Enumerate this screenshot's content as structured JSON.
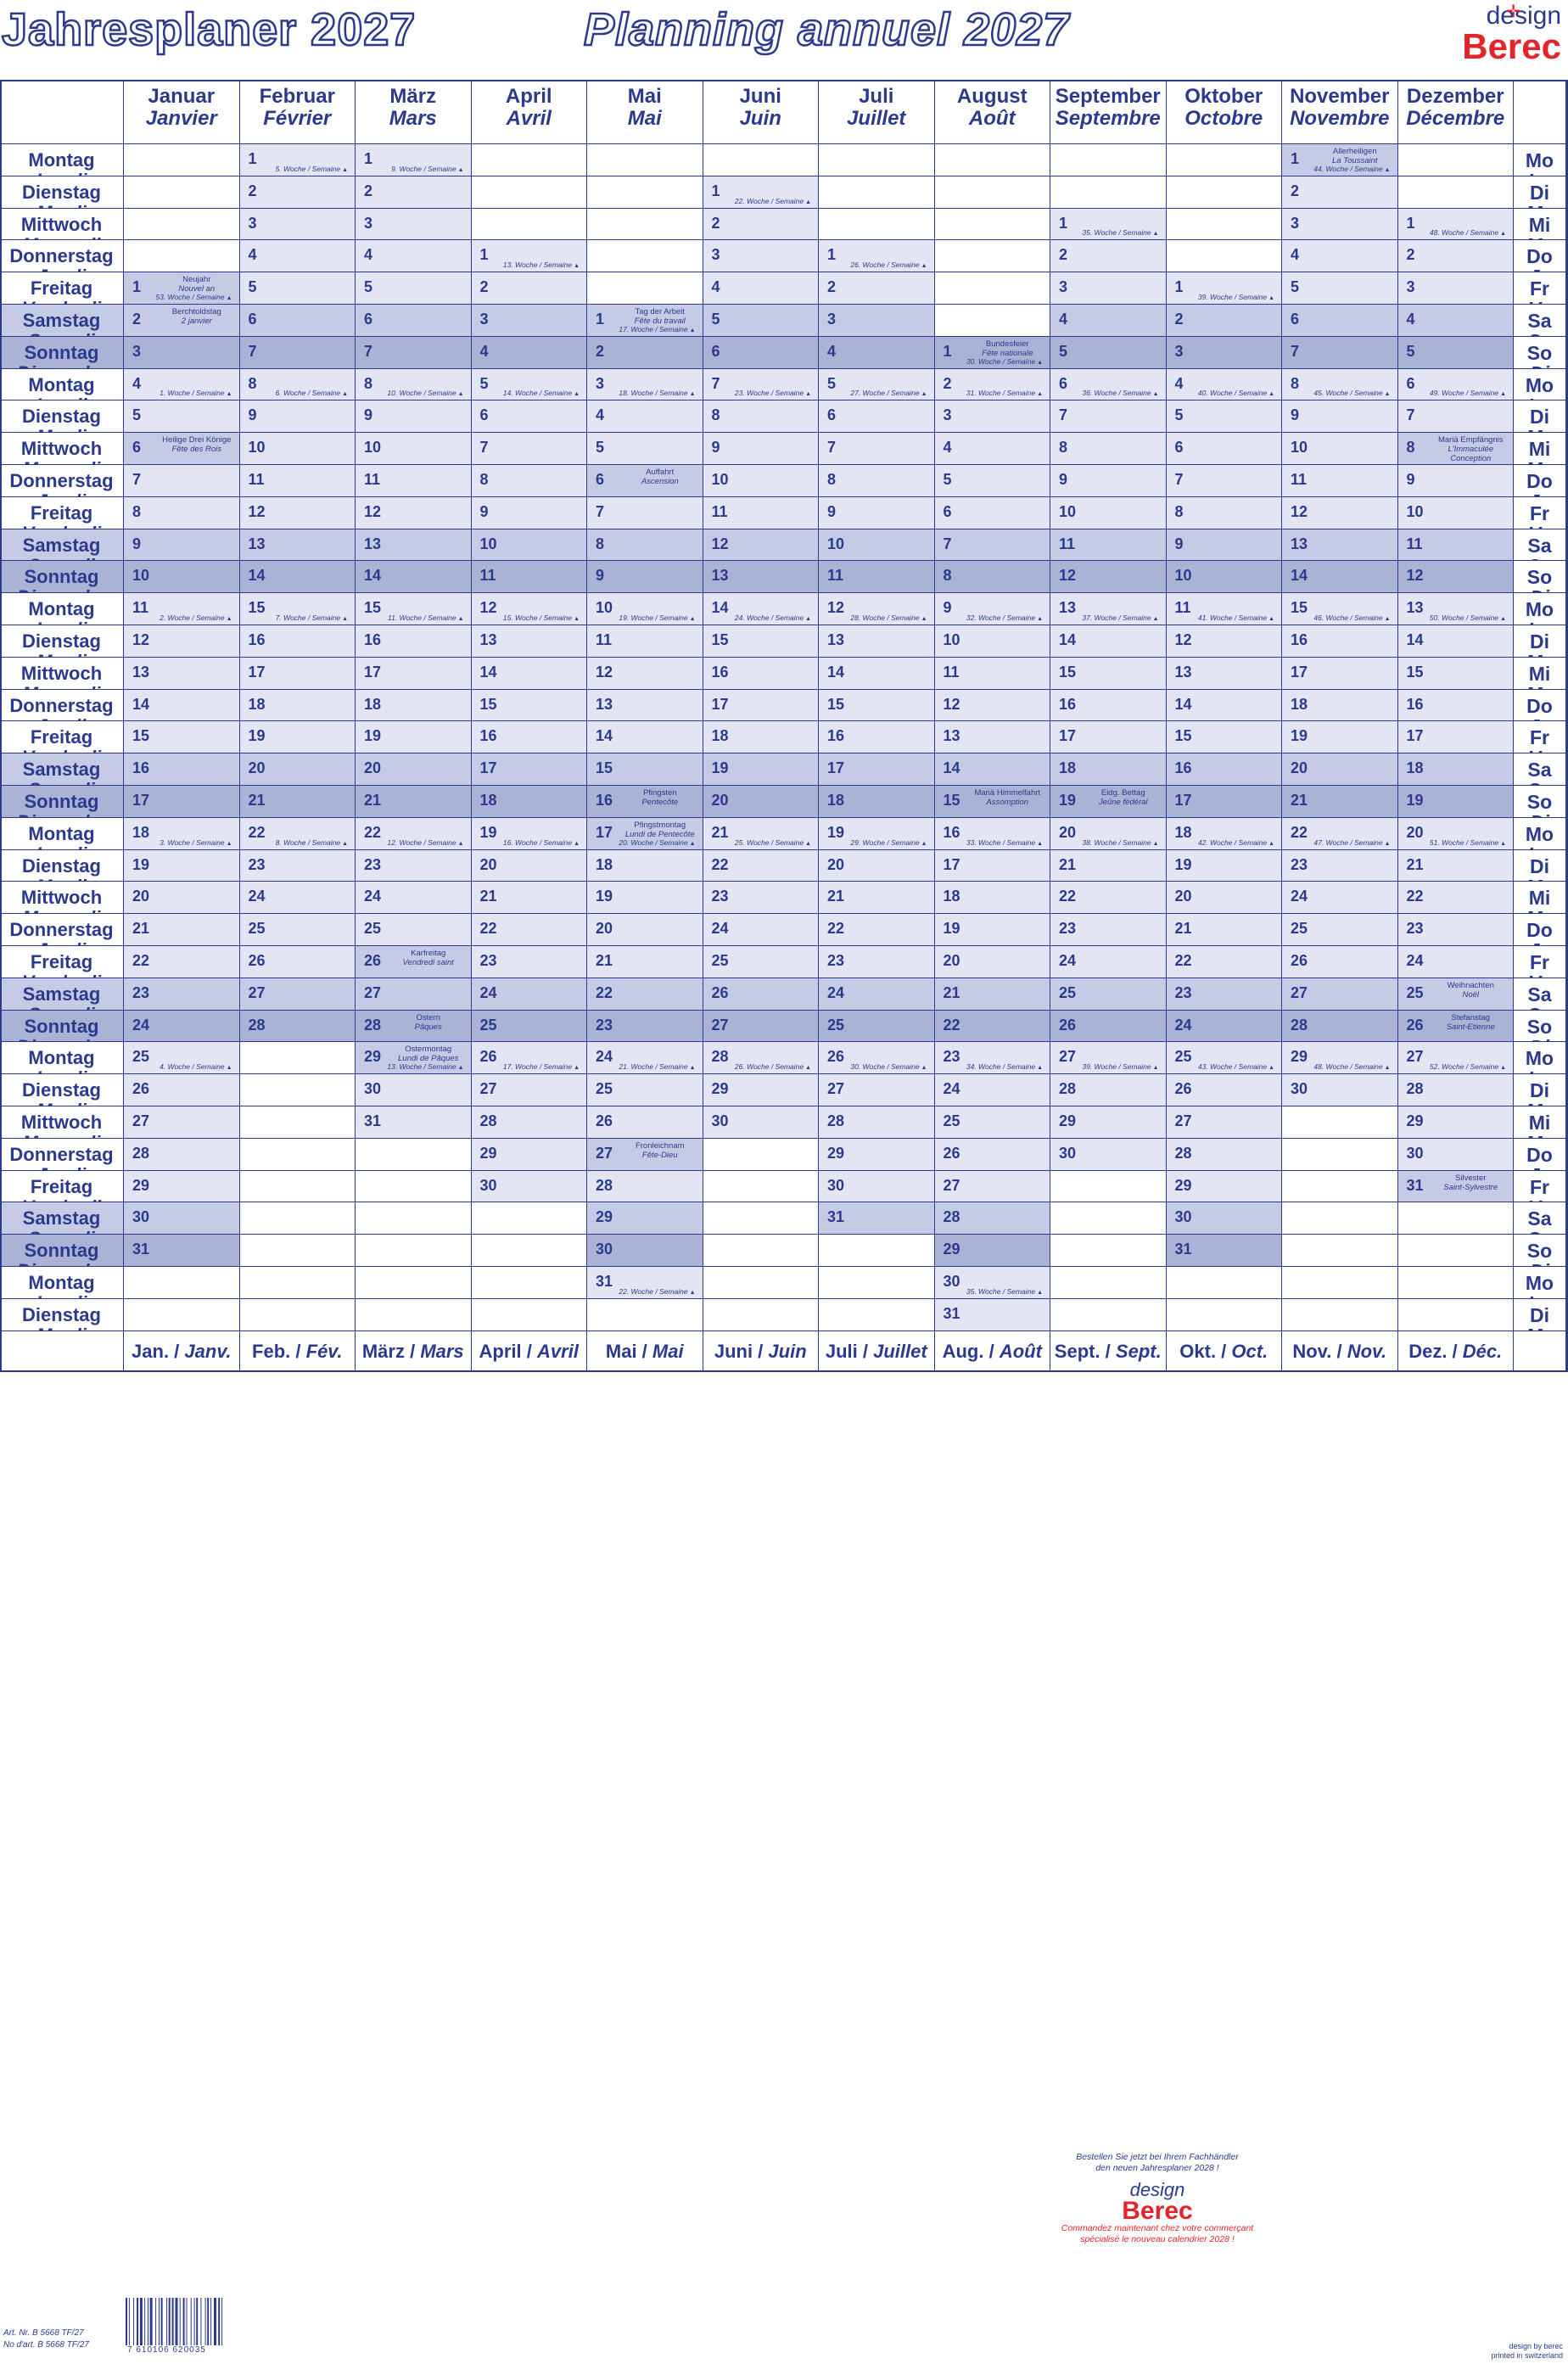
{
  "header": {
    "title_de": "Jahresplaner 2027",
    "title_fr": "Planning annuel 2027",
    "logo_design": "design",
    "logo_brand": "Berec"
  },
  "colors": {
    "ink": "#2b3a8c",
    "weekday": "#e3e6f2",
    "saturday": "#c5cbe4",
    "sunday": "#aab2d6",
    "brand_red": "#e3242b"
  },
  "months": [
    {
      "de": "Januar",
      "fr": "Janvier",
      "start": 4,
      "days": 31,
      "foot_de": "Jan. /",
      "foot_fr": "Janv."
    },
    {
      "de": "Februar",
      "fr": "Février",
      "start": 0,
      "days": 28,
      "foot_de": "Feb. /",
      "foot_fr": "Fév."
    },
    {
      "de": "März",
      "fr": "Mars",
      "start": 0,
      "days": 31,
      "foot_de": "März /",
      "foot_fr": "Mars"
    },
    {
      "de": "April",
      "fr": "Avril",
      "start": 3,
      "days": 30,
      "foot_de": "April /",
      "foot_fr": "Avril"
    },
    {
      "de": "Mai",
      "fr": "Mai",
      "start": 5,
      "days": 31,
      "foot_de": "Mai /",
      "foot_fr": "Mai"
    },
    {
      "de": "Juni",
      "fr": "Juin",
      "start": 1,
      "days": 30,
      "foot_de": "Juni /",
      "foot_fr": "Juin"
    },
    {
      "de": "Juli",
      "fr": "Juillet",
      "start": 3,
      "days": 31,
      "foot_de": "Juli /",
      "foot_fr": "Juillet"
    },
    {
      "de": "August",
      "fr": "Août",
      "start": 6,
      "days": 31,
      "foot_de": "Aug. /",
      "foot_fr": "Août"
    },
    {
      "de": "September",
      "fr": "Septembre",
      "start": 2,
      "days": 30,
      "foot_de": "Sept. /",
      "foot_fr": "Sept."
    },
    {
      "de": "Oktober",
      "fr": "Octobre",
      "start": 4,
      "days": 31,
      "foot_de": "Okt. /",
      "foot_fr": "Oct."
    },
    {
      "de": "November",
      "fr": "Novembre",
      "start": 0,
      "days": 30,
      "foot_de": "Nov. /",
      "foot_fr": "Nov."
    },
    {
      "de": "Dezember",
      "fr": "Décembre",
      "start": 2,
      "days": 31,
      "foot_de": "Dez. /",
      "foot_fr": "Déc."
    }
  ],
  "weekdays_left": [
    {
      "de": "Montag",
      "fr": "Lundi"
    },
    {
      "de": "Dienstag",
      "fr": "Mardi"
    },
    {
      "de": "Mittwoch",
      "fr": "Mercredi"
    },
    {
      "de": "Donnerstag",
      "fr": "Jeudi"
    },
    {
      "de": "Freitag",
      "fr": "Vendredi"
    },
    {
      "de": "Samstag",
      "fr": "Samedi"
    },
    {
      "de": "Sonntag",
      "fr": "Dimanche"
    }
  ],
  "weekdays_right": [
    {
      "de": "Mo",
      "fr": "Lu"
    },
    {
      "de": "Di",
      "fr": "Ma"
    },
    {
      "de": "Mi",
      "fr": "Me"
    },
    {
      "de": "Do",
      "fr": "Je"
    },
    {
      "de": "Fr",
      "fr": "Ve"
    },
    {
      "de": "Sa",
      "fr": "Sa"
    },
    {
      "de": "So",
      "fr": "Di"
    }
  ],
  "week_label": "Woche / Semaine",
  "holidays": [
    {
      "month": 0,
      "day": 1,
      "de": "Neujahr",
      "fr": "Nouvel an"
    },
    {
      "month": 0,
      "day": 2,
      "de": "Berchtoldstag",
      "fr": "2 janvier"
    },
    {
      "month": 0,
      "day": 6,
      "de": "Heilige Drei Könige",
      "fr": "Fête des Rois"
    },
    {
      "month": 2,
      "day": 26,
      "de": "Karfreitag",
      "fr": "Vendredi saint"
    },
    {
      "month": 2,
      "day": 28,
      "de": "Ostern",
      "fr": "Pâques"
    },
    {
      "month": 2,
      "day": 29,
      "de": "Ostermontag",
      "fr": "Lundi de Pâques"
    },
    {
      "month": 4,
      "day": 1,
      "de": "Tag der Arbeit",
      "fr": "Fête du travail"
    },
    {
      "month": 4,
      "day": 6,
      "de": "Auffahrt",
      "fr": "Ascension"
    },
    {
      "month": 4,
      "day": 16,
      "de": "Pfingsten",
      "fr": "Pentecôte"
    },
    {
      "month": 4,
      "day": 17,
      "de": "Pfingstmontag",
      "fr": "Lundi de Pentecôte"
    },
    {
      "month": 4,
      "day": 27,
      "de": "Fronleichnam",
      "fr": "Fête-Dieu"
    },
    {
      "month": 7,
      "day": 1,
      "de": "Bundesfeier",
      "fr": "Fête nationale"
    },
    {
      "month": 7,
      "day": 15,
      "de": "Mariä Himmelfahrt",
      "fr": "Assomption"
    },
    {
      "month": 8,
      "day": 19,
      "de": "Eidg. Bettag",
      "fr": "Jeûne fédéral"
    },
    {
      "month": 10,
      "day": 1,
      "de": "Allerheiligen",
      "fr": "La Toussaint"
    },
    {
      "month": 11,
      "day": 8,
      "de": "Mariä Empfängnis",
      "fr": "L'Immaculée Conception"
    },
    {
      "month": 11,
      "day": 25,
      "de": "Weihnachten",
      "fr": "Noël"
    },
    {
      "month": 11,
      "day": 26,
      "de": "Stefanstag",
      "fr": "Saint-Etienne"
    },
    {
      "month": 11,
      "day": 31,
      "de": "Silvester",
      "fr": "Saint-Sylvestre"
    }
  ],
  "promo": {
    "line1": "Bestellen Sie jetzt bei Ihrem Fachhändler",
    "line2": "den neuen Jahresplaner 2028 !",
    "brand_design": "design",
    "brand": "Berec",
    "line3": "Commandez maintenant chez votre commerçant",
    "line4": "spécialisé le nouveau calendrier 2028 !"
  },
  "footer": {
    "art_de": "Art. Nr. B 5668 TF/27",
    "art_fr": "No d'art. B 5668 TF/27",
    "barcode_number": "7 610106 620035",
    "credit_1": "design by berec",
    "credit_2": "printed in switzerland"
  }
}
